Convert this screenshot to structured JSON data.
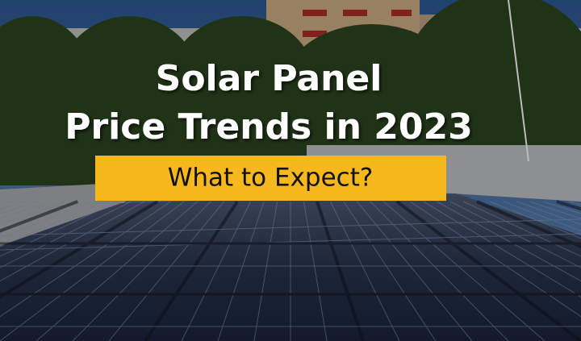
{
  "title": {
    "line1": "Solar Panel",
    "line2": "Price Trends in 2023"
  },
  "subtitle": "What to Expect?"
}
